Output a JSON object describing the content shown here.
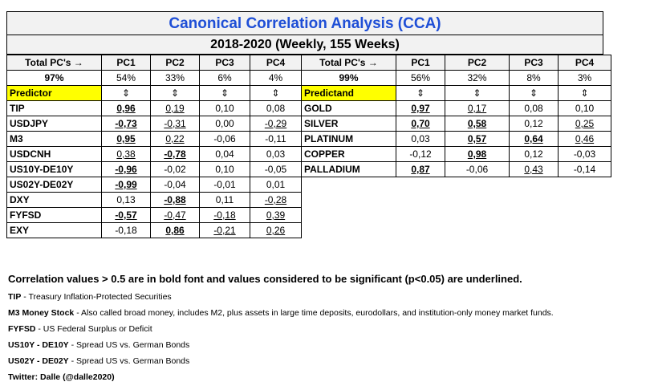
{
  "title": "Canonical Correlation Analysis (CCA)",
  "subtitle": "2018-2020 (Weekly, 155 Weeks)",
  "left": {
    "header_label": "Total PC's →",
    "pcs": [
      "PC1",
      "PC2",
      "PC3",
      "PC4"
    ],
    "total_value": "97%",
    "pc_values": [
      "54%",
      "33%",
      "6%",
      "4%"
    ],
    "group_label": "Predictor",
    "arrows": [
      "⇕",
      "⇕",
      "⇕",
      "⇕"
    ],
    "rows": [
      {
        "name": "TIP",
        "cells": [
          {
            "v": "0,96",
            "b": true,
            "u": true
          },
          {
            "v": "0,19",
            "b": false,
            "u": true
          },
          {
            "v": "0,10",
            "b": false,
            "u": false
          },
          {
            "v": "0,08",
            "b": false,
            "u": false
          }
        ]
      },
      {
        "name": "USDJPY",
        "cells": [
          {
            "v": "-0,73",
            "b": true,
            "u": true
          },
          {
            "v": "-0,31",
            "b": false,
            "u": true
          },
          {
            "v": "0,00",
            "b": false,
            "u": false
          },
          {
            "v": "-0,29",
            "b": false,
            "u": true
          }
        ]
      },
      {
        "name": "M3",
        "cells": [
          {
            "v": "0,95",
            "b": true,
            "u": true
          },
          {
            "v": "0,22",
            "b": false,
            "u": true
          },
          {
            "v": "-0,06",
            "b": false,
            "u": false
          },
          {
            "v": "-0,11",
            "b": false,
            "u": false
          }
        ]
      },
      {
        "name": "USDCNH",
        "cells": [
          {
            "v": "0,38",
            "b": false,
            "u": true
          },
          {
            "v": "-0,78",
            "b": true,
            "u": true
          },
          {
            "v": "0,04",
            "b": false,
            "u": false
          },
          {
            "v": "0,03",
            "b": false,
            "u": false
          }
        ]
      },
      {
        "name": "US10Y-DE10Y",
        "cells": [
          {
            "v": "-0,96",
            "b": true,
            "u": true
          },
          {
            "v": "-0,02",
            "b": false,
            "u": false
          },
          {
            "v": "0,10",
            "b": false,
            "u": false
          },
          {
            "v": "-0,05",
            "b": false,
            "u": false
          }
        ]
      },
      {
        "name": "US02Y-DE02Y",
        "cells": [
          {
            "v": "-0,99",
            "b": true,
            "u": true
          },
          {
            "v": "-0,04",
            "b": false,
            "u": false
          },
          {
            "v": "-0,01",
            "b": false,
            "u": false
          },
          {
            "v": "0,01",
            "b": false,
            "u": false
          }
        ]
      },
      {
        "name": "DXY",
        "cells": [
          {
            "v": "0,13",
            "b": false,
            "u": false
          },
          {
            "v": "-0,88",
            "b": true,
            "u": true
          },
          {
            "v": "0,11",
            "b": false,
            "u": false
          },
          {
            "v": "-0,28",
            "b": false,
            "u": true
          }
        ]
      },
      {
        "name": "FYFSD",
        "cells": [
          {
            "v": "-0,57",
            "b": true,
            "u": true
          },
          {
            "v": "-0,47",
            "b": false,
            "u": true
          },
          {
            "v": "-0,18",
            "b": false,
            "u": true
          },
          {
            "v": "0,39",
            "b": false,
            "u": true
          }
        ]
      },
      {
        "name": "EXY",
        "cells": [
          {
            "v": "-0,18",
            "b": false,
            "u": false
          },
          {
            "v": "0,86",
            "b": true,
            "u": true
          },
          {
            "v": "-0,21",
            "b": false,
            "u": true
          },
          {
            "v": "0,26",
            "b": false,
            "u": true
          }
        ]
      }
    ]
  },
  "right": {
    "header_label": "Total PC's →",
    "pcs": [
      "PC1",
      "PC2",
      "PC3",
      "PC4"
    ],
    "total_value": "99%",
    "pc_values": [
      "56%",
      "32%",
      "8%",
      "3%"
    ],
    "group_label": "Predictand",
    "arrows": [
      "⇕",
      "⇕",
      "⇕",
      "⇕"
    ],
    "rows": [
      {
        "name": "GOLD",
        "cells": [
          {
            "v": "0,97",
            "b": true,
            "u": true
          },
          {
            "v": "0,17",
            "b": false,
            "u": true
          },
          {
            "v": "0,08",
            "b": false,
            "u": false
          },
          {
            "v": "0,10",
            "b": false,
            "u": false
          }
        ]
      },
      {
        "name": "SILVER",
        "cells": [
          {
            "v": "0,70",
            "b": true,
            "u": true
          },
          {
            "v": "0,58",
            "b": true,
            "u": true
          },
          {
            "v": "0,12",
            "b": false,
            "u": false
          },
          {
            "v": "0,25",
            "b": false,
            "u": true
          }
        ]
      },
      {
        "name": "PLATINUM",
        "cells": [
          {
            "v": "0,03",
            "b": false,
            "u": false
          },
          {
            "v": "0,57",
            "b": true,
            "u": true
          },
          {
            "v": "0,64",
            "b": true,
            "u": true
          },
          {
            "v": "0,46",
            "b": false,
            "u": true
          }
        ]
      },
      {
        "name": "COPPER",
        "cells": [
          {
            "v": "-0,12",
            "b": false,
            "u": false
          },
          {
            "v": "0,98",
            "b": true,
            "u": true
          },
          {
            "v": "0,12",
            "b": false,
            "u": false
          },
          {
            "v": "-0,03",
            "b": false,
            "u": false
          }
        ]
      },
      {
        "name": "PALLADIUM",
        "cells": [
          {
            "v": "0,87",
            "b": true,
            "u": true
          },
          {
            "v": "-0,06",
            "b": false,
            "u": false
          },
          {
            "v": "0,43",
            "b": false,
            "u": true
          },
          {
            "v": "-0,14",
            "b": false,
            "u": false
          }
        ]
      }
    ]
  },
  "notes": {
    "headline": "Correlation values > 0.5 are in bold font and values considered to be significant (p<0.05) are underlined.",
    "items": [
      {
        "term": "TIP",
        "text": " - Treasury Inflation-Protected Securities"
      },
      {
        "term": "M3 Money Stock",
        "text": " - Also called broad money, includes M2, plus assets in large time deposits, eurodollars, and institution-only money market funds."
      },
      {
        "term": "FYFSD",
        "text": " - US Federal Surplus or Deficit"
      },
      {
        "term": "US10Y - DE10Y",
        "text": " - Spread US vs. German Bonds"
      },
      {
        "term": "US02Y - DE02Y",
        "text": " - Spread US vs. German Bonds"
      }
    ],
    "credit": "Twitter: Dalle (@dalle2020)"
  },
  "colors": {
    "title": "#1f4fd6",
    "highlight": "#ffff00",
    "band": "#f2f2f2"
  }
}
